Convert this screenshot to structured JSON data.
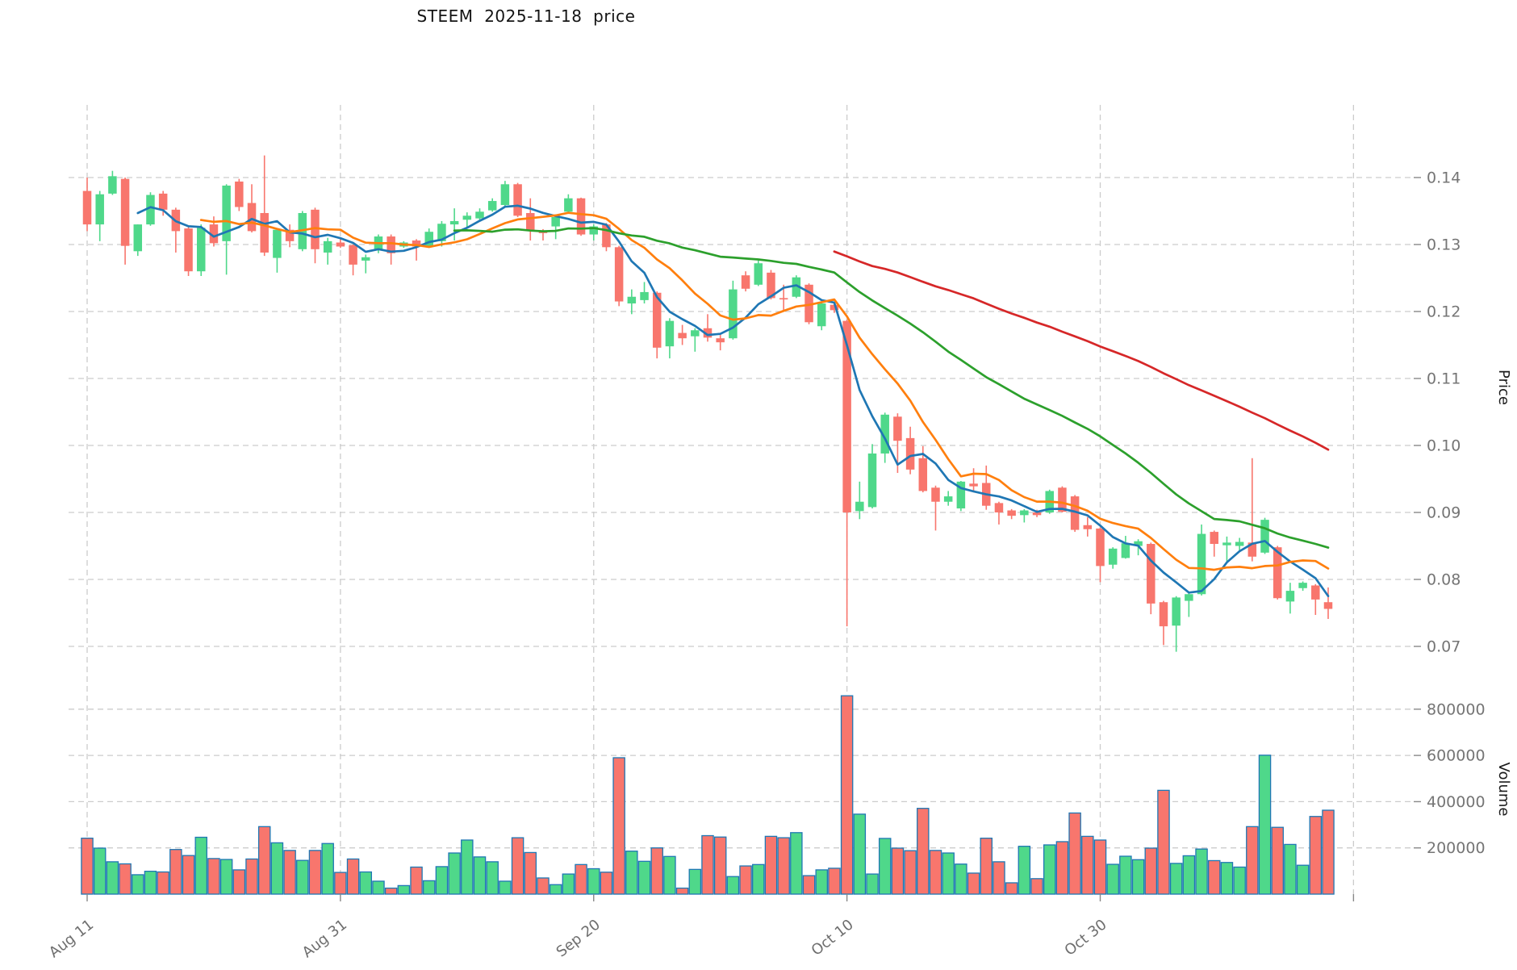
{
  "chart_data": {
    "type": "candlestick",
    "title": "STEEM  2025-11-18  price",
    "ylabel_price": "Price",
    "ylabel_volume": "Volume",
    "legend": "none",
    "grid": true,
    "background": "#ffffff",
    "up_color": "#4fd88a",
    "down_color": "#f8766d",
    "volume_edge_color": "#1f77b4",
    "grid_color": "#cccccc",
    "tick_color": "#888888",
    "price_axis": {
      "ticks": [
        0.07,
        0.08,
        0.09,
        0.1,
        0.11,
        0.12,
        0.13,
        0.14
      ],
      "labels": [
        "0.07",
        "0.08",
        "0.09",
        "0.10",
        "0.11",
        "0.12",
        "0.13",
        "0.14"
      ]
    },
    "volume_axis": {
      "ticks": [
        200000,
        400000,
        600000,
        800000
      ],
      "labels": [
        "200000",
        "400000",
        "600000",
        "800000"
      ],
      "max": 883000
    },
    "x_ticks": [
      {
        "index": 0,
        "label": "Aug 11"
      },
      {
        "index": 20,
        "label": "Aug 31"
      },
      {
        "index": 40,
        "label": "Sep 20"
      },
      {
        "index": 60,
        "label": "Oct 10"
      },
      {
        "index": 80,
        "label": "Oct 30"
      },
      {
        "index": 100,
        "label": ""
      }
    ],
    "moving_averages": [
      {
        "window": 5,
        "color": "#1f77b4",
        "name": "ma5"
      },
      {
        "window": 10,
        "color": "#ff7f0e",
        "name": "ma10"
      },
      {
        "window": 30,
        "color": "#2ca02c",
        "name": "ma30"
      },
      {
        "window": 60,
        "color": "#d62728",
        "name": "ma60"
      }
    ],
    "candles_format": [
      "date",
      "open",
      "high",
      "low",
      "close",
      "volume"
    ],
    "candles": [
      [
        "2025-08-11",
        0.138,
        0.14,
        0.132,
        0.133,
        242000
      ],
      [
        "2025-08-12",
        0.133,
        0.138,
        0.1305,
        0.1375,
        199000
      ],
      [
        "2025-08-13",
        0.1376,
        0.141,
        0.1374,
        0.1402,
        140000
      ],
      [
        "2025-08-14",
        0.1398,
        0.14,
        0.127,
        0.1298,
        131000
      ],
      [
        "2025-08-15",
        0.129,
        0.133,
        0.1283,
        0.133,
        84000
      ],
      [
        "2025-08-16",
        0.133,
        0.1378,
        0.1328,
        0.1374,
        99000
      ],
      [
        "2025-08-17",
        0.1376,
        0.138,
        0.1343,
        0.1352,
        96000
      ],
      [
        "2025-08-18",
        0.1352,
        0.1355,
        0.1288,
        0.132,
        193000
      ],
      [
        "2025-08-19",
        0.1324,
        0.1326,
        0.1253,
        0.126,
        167000
      ],
      [
        "2025-08-20",
        0.126,
        0.133,
        0.1253,
        0.1325,
        246000
      ],
      [
        "2025-08-21",
        0.133,
        0.1342,
        0.1297,
        0.1302,
        154000
      ],
      [
        "2025-08-22",
        0.1305,
        0.139,
        0.1255,
        0.1388,
        150000
      ],
      [
        "2025-08-23",
        0.1394,
        0.1398,
        0.135,
        0.1356,
        105000
      ],
      [
        "2025-08-24",
        0.1362,
        0.139,
        0.1318,
        0.132,
        152000
      ],
      [
        "2025-08-25",
        0.1347,
        0.1433,
        0.1283,
        0.1288,
        292000
      ],
      [
        "2025-08-26",
        0.128,
        0.1322,
        0.1258,
        0.1322,
        222000
      ],
      [
        "2025-08-27",
        0.1322,
        0.133,
        0.1296,
        0.1305,
        189000
      ],
      [
        "2025-08-28",
        0.1293,
        0.135,
        0.129,
        0.1347,
        146000
      ],
      [
        "2025-08-29",
        0.1352,
        0.1355,
        0.1272,
        0.1293,
        189000
      ],
      [
        "2025-08-30",
        0.1288,
        0.131,
        0.127,
        0.1305,
        219000
      ],
      [
        "2025-08-31",
        0.1303,
        0.131,
        0.1295,
        0.1297,
        94000
      ],
      [
        "2025-09-01",
        0.1299,
        0.13,
        0.1254,
        0.127,
        152000
      ],
      [
        "2025-09-02",
        0.1276,
        0.1285,
        0.1257,
        0.1281,
        96000
      ],
      [
        "2025-09-03",
        0.1293,
        0.1315,
        0.1287,
        0.1312,
        56000
      ],
      [
        "2025-09-04",
        0.1312,
        0.1315,
        0.127,
        0.1287,
        26000
      ],
      [
        "2025-09-05",
        0.1297,
        0.1305,
        0.1295,
        0.1303,
        37000
      ],
      [
        "2025-09-06",
        0.1306,
        0.1308,
        0.1276,
        0.1297,
        117000
      ],
      [
        "2025-09-07",
        0.1297,
        0.1324,
        0.1295,
        0.1319,
        58000
      ],
      [
        "2025-09-08",
        0.1305,
        0.1335,
        0.1297,
        0.1331,
        119000
      ],
      [
        "2025-09-09",
        0.133,
        0.1354,
        0.1306,
        0.1335,
        178000
      ],
      [
        "2025-09-10",
        0.1337,
        0.1348,
        0.1324,
        0.1343,
        234000
      ],
      [
        "2025-09-11",
        0.1339,
        0.1354,
        0.1337,
        0.1349,
        161000
      ],
      [
        "2025-09-12",
        0.1351,
        0.1369,
        0.1349,
        0.1365,
        140000
      ],
      [
        "2025-09-13",
        0.1359,
        0.1395,
        0.1357,
        0.139,
        56000
      ],
      [
        "2025-09-14",
        0.139,
        0.1392,
        0.1341,
        0.1343,
        244000
      ],
      [
        "2025-09-15",
        0.1347,
        0.1369,
        0.1306,
        0.1321,
        180000
      ],
      [
        "2025-09-16",
        0.1321,
        0.1323,
        0.1306,
        0.1317,
        70000
      ],
      [
        "2025-09-17",
        0.1327,
        0.1344,
        0.1308,
        0.1341,
        41000
      ],
      [
        "2025-09-18",
        0.1349,
        0.1375,
        0.1347,
        0.1369,
        87000
      ],
      [
        "2025-09-19",
        0.1369,
        0.137,
        0.1313,
        0.1315,
        128000
      ],
      [
        "2025-09-20",
        0.1315,
        0.133,
        0.1306,
        0.1327,
        110000
      ],
      [
        "2025-09-21",
        0.133,
        0.1332,
        0.129,
        0.1296,
        95000
      ],
      [
        "2025-09-22",
        0.1296,
        0.1298,
        0.1208,
        0.1215,
        590000
      ],
      [
        "2025-09-23",
        0.1212,
        0.1233,
        0.1196,
        0.1222,
        186000
      ],
      [
        "2025-09-24",
        0.1217,
        0.1244,
        0.1212,
        0.1229,
        142000
      ],
      [
        "2025-09-25",
        0.1228,
        0.123,
        0.113,
        0.1146,
        200000
      ],
      [
        "2025-09-26",
        0.1148,
        0.119,
        0.113,
        0.1186,
        163000
      ],
      [
        "2025-09-27",
        0.1168,
        0.118,
        0.115,
        0.116,
        26000
      ],
      [
        "2025-09-28",
        0.1163,
        0.1175,
        0.114,
        0.1172,
        107000
      ],
      [
        "2025-09-29",
        0.1175,
        0.1196,
        0.1155,
        0.1161,
        253000
      ],
      [
        "2025-09-30",
        0.116,
        0.1165,
        0.1142,
        0.1154,
        247000
      ],
      [
        "2025-10-01",
        0.116,
        0.1246,
        0.1158,
        0.1233,
        76000
      ],
      [
        "2025-10-02",
        0.1254,
        0.126,
        0.123,
        0.1234,
        122000
      ],
      [
        "2025-10-03",
        0.124,
        0.1276,
        0.1238,
        0.1272,
        128000
      ],
      [
        "2025-10-04",
        0.1258,
        0.1262,
        0.1218,
        0.122,
        250000
      ],
      [
        "2025-10-05",
        0.122,
        0.124,
        0.1202,
        0.1218,
        244000
      ],
      [
        "2025-10-06",
        0.1222,
        0.1254,
        0.122,
        0.1251,
        266000
      ],
      [
        "2025-10-07",
        0.124,
        0.1242,
        0.1181,
        0.1184,
        80000
      ],
      [
        "2025-10-08",
        0.1178,
        0.1214,
        0.1172,
        0.1212,
        105000
      ],
      [
        "2025-10-09",
        0.121,
        0.1215,
        0.1198,
        0.1202,
        112000
      ],
      [
        "2025-10-10",
        0.1186,
        0.1188,
        0.073,
        0.09,
        858000
      ],
      [
        "2025-10-11",
        0.0902,
        0.0946,
        0.089,
        0.0916,
        346000
      ],
      [
        "2025-10-12",
        0.0908,
        0.1002,
        0.0906,
        0.0988,
        87000
      ],
      [
        "2025-10-13",
        0.0988,
        0.1049,
        0.0974,
        0.1046,
        241000
      ],
      [
        "2025-10-14",
        0.1043,
        0.1048,
        0.0959,
        0.1007,
        199000
      ],
      [
        "2025-10-15",
        0.1011,
        0.1028,
        0.0957,
        0.0964,
        188000
      ],
      [
        "2025-10-16",
        0.0981,
        0.0999,
        0.093,
        0.0932,
        371000
      ],
      [
        "2025-10-17",
        0.0937,
        0.094,
        0.0873,
        0.0916,
        189000
      ],
      [
        "2025-10-18",
        0.0916,
        0.0932,
        0.091,
        0.0924,
        178000
      ],
      [
        "2025-10-19",
        0.0906,
        0.0947,
        0.0902,
        0.0946,
        130000
      ],
      [
        "2025-10-20",
        0.0943,
        0.0966,
        0.093,
        0.0939,
        91000
      ],
      [
        "2025-10-21",
        0.0944,
        0.097,
        0.0904,
        0.091,
        242000
      ],
      [
        "2025-10-22",
        0.0914,
        0.0916,
        0.0882,
        0.09,
        140000
      ],
      [
        "2025-10-23",
        0.0903,
        0.0905,
        0.089,
        0.0895,
        49000
      ],
      [
        "2025-10-24",
        0.0896,
        0.0905,
        0.0885,
        0.0903,
        207000
      ],
      [
        "2025-10-25",
        0.09,
        0.0904,
        0.0893,
        0.0896,
        67000
      ],
      [
        "2025-10-26",
        0.09,
        0.0934,
        0.0898,
        0.0932,
        213000
      ],
      [
        "2025-10-27",
        0.0937,
        0.0939,
        0.09,
        0.0901,
        227000
      ],
      [
        "2025-10-28",
        0.0924,
        0.0926,
        0.0871,
        0.0874,
        351000
      ],
      [
        "2025-10-29",
        0.0881,
        0.0893,
        0.0864,
        0.0875,
        250000
      ],
      [
        "2025-10-30",
        0.0876,
        0.0878,
        0.0796,
        0.082,
        234000
      ],
      [
        "2025-10-31",
        0.0822,
        0.0848,
        0.0816,
        0.0846,
        129000
      ],
      [
        "2025-11-01",
        0.0832,
        0.0865,
        0.0831,
        0.0854,
        164000
      ],
      [
        "2025-11-02",
        0.085,
        0.086,
        0.0836,
        0.0857,
        149000
      ],
      [
        "2025-11-03",
        0.0853,
        0.0855,
        0.0748,
        0.0764,
        199000
      ],
      [
        "2025-11-04",
        0.0766,
        0.0768,
        0.0702,
        0.073,
        449000
      ],
      [
        "2025-11-05",
        0.0731,
        0.0775,
        0.0692,
        0.0773,
        133000
      ],
      [
        "2025-11-06",
        0.0768,
        0.078,
        0.0744,
        0.0778,
        166000
      ],
      [
        "2025-11-07",
        0.0778,
        0.0882,
        0.0776,
        0.0868,
        195000
      ],
      [
        "2025-11-08",
        0.0871,
        0.0873,
        0.0834,
        0.0853,
        145000
      ],
      [
        "2025-11-09",
        0.0851,
        0.0864,
        0.0827,
        0.0855,
        137000
      ],
      [
        "2025-11-10",
        0.085,
        0.0862,
        0.0842,
        0.0856,
        117000
      ],
      [
        "2025-11-11",
        0.0855,
        0.0981,
        0.0827,
        0.0834,
        292000
      ],
      [
        "2025-11-12",
        0.084,
        0.0892,
        0.0838,
        0.0889,
        601000
      ],
      [
        "2025-11-13",
        0.0848,
        0.085,
        0.077,
        0.0772,
        289000
      ],
      [
        "2025-11-14",
        0.0767,
        0.0795,
        0.0749,
        0.0783,
        215000
      ],
      [
        "2025-11-15",
        0.0787,
        0.0797,
        0.0783,
        0.0795,
        125000
      ],
      [
        "2025-11-16",
        0.0791,
        0.0793,
        0.0747,
        0.077,
        336000
      ],
      [
        "2025-11-17",
        0.0766,
        0.0788,
        0.0741,
        0.0756,
        363000
      ]
    ]
  }
}
